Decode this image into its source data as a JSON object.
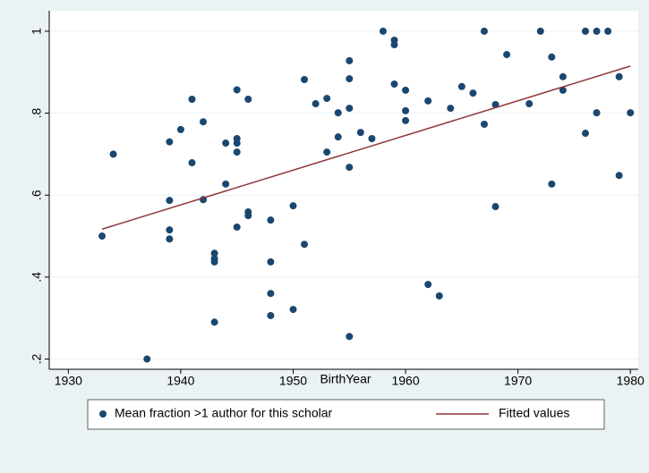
{
  "chart_data": {
    "type": "scatter",
    "x_label": "BirthYear",
    "xlim": [
      1928.3,
      1980.7
    ],
    "xticks": [
      1930,
      1940,
      1950,
      1960,
      1970,
      1980
    ],
    "ylim": [
      0.175,
      1.05
    ],
    "yticks": [
      {
        "value": 0.2,
        "label": ".2"
      },
      {
        "value": 0.4,
        "label": ".4"
      },
      {
        "value": 0.6,
        "label": ".6"
      },
      {
        "value": 0.8,
        "label": ".8"
      },
      1
    ],
    "grid": true,
    "legend": "bottom",
    "series": [
      {
        "name": "Mean fraction >1 author for this scholar",
        "type": "scatter",
        "color": "#1a476f",
        "x": [
          1933,
          1934,
          1937,
          1939,
          1939,
          1939,
          1939,
          1940,
          1941,
          1941,
          1942,
          1942,
          1943,
          1943,
          1943,
          1943,
          1944,
          1944,
          1945,
          1945,
          1945,
          1945,
          1945,
          1946,
          1946,
          1946,
          1948,
          1948,
          1948,
          1948,
          1950,
          1950,
          1951,
          1951,
          1952,
          1953,
          1953,
          1954,
          1954,
          1955,
          1955,
          1955,
          1955,
          1955,
          1956,
          1957,
          1958,
          1959,
          1959,
          1959,
          1960,
          1960,
          1960,
          1962,
          1962,
          1963,
          1964,
          1965,
          1966,
          1967,
          1967,
          1968,
          1968,
          1969,
          1971,
          1972,
          1973,
          1973,
          1974,
          1974,
          1976,
          1976,
          1977,
          1977,
          1978,
          1979,
          1979,
          1980
        ],
        "values": [
          0.5,
          0.7,
          0.2,
          0.73,
          0.587,
          0.515,
          0.493,
          0.76,
          0.834,
          0.679,
          0.779,
          0.589,
          0.458,
          0.445,
          0.437,
          0.29,
          0.727,
          0.627,
          0.857,
          0.738,
          0.727,
          0.705,
          0.522,
          0.834,
          0.559,
          0.55,
          0.539,
          0.437,
          0.36,
          0.306,
          0.574,
          0.321,
          0.882,
          0.48,
          0.823,
          0.836,
          0.705,
          0.801,
          0.742,
          0.928,
          0.884,
          0.812,
          0.668,
          0.255,
          0.753,
          0.738,
          1.0,
          0.978,
          0.967,
          0.871,
          0.856,
          0.806,
          0.782,
          0.83,
          0.382,
          0.354,
          0.812,
          0.865,
          0.849,
          1.0,
          0.773,
          0.821,
          0.572,
          0.943,
          0.823,
          1.0,
          0.937,
          0.627,
          0.889,
          0.856,
          1.0,
          0.751,
          1.0,
          0.801,
          1.0,
          0.889,
          0.648,
          0.801
        ]
      },
      {
        "name": "Fitted values",
        "type": "line",
        "color": "#90353b",
        "x": [
          1933,
          1980
        ],
        "values": [
          0.517,
          0.915
        ]
      }
    ]
  }
}
